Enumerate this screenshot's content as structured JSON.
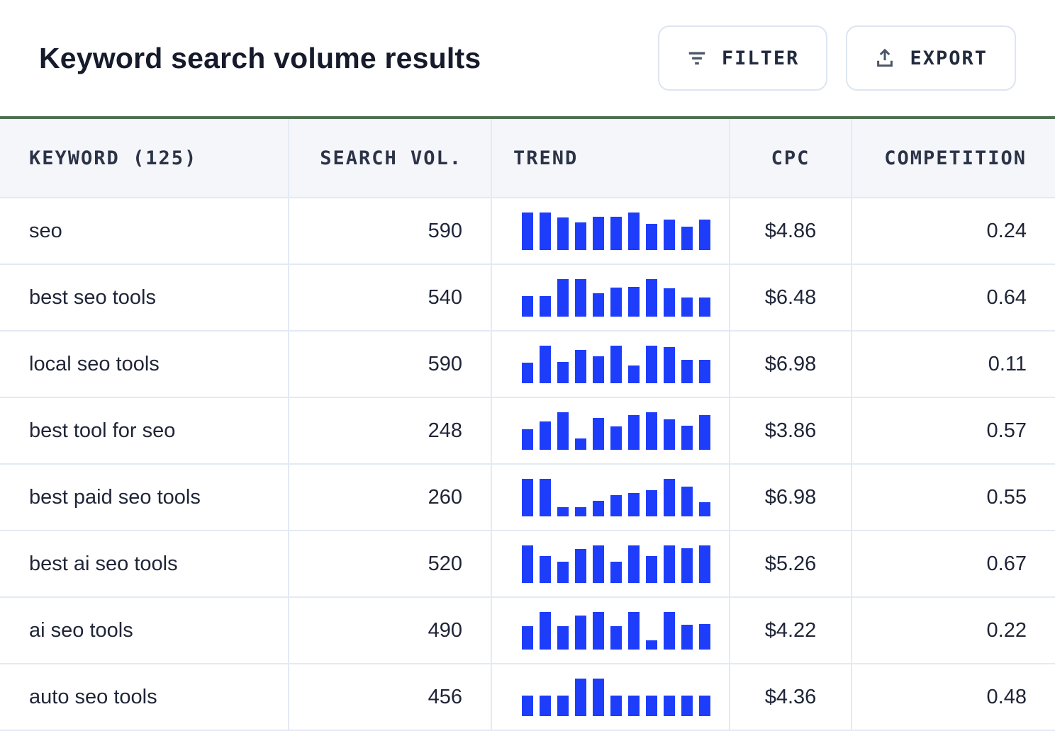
{
  "header": {
    "title": "Keyword search volume results",
    "filter_label": "FILTER",
    "export_label": "EXPORT"
  },
  "table": {
    "columns": [
      "KEYWORD (125)",
      "SEARCH VOL.",
      "TREND",
      "CPC",
      "COMPETITION"
    ],
    "rows": [
      {
        "keyword": "seo",
        "search_vol": "590",
        "cpc": "$4.86",
        "competition": "0.24",
        "trend": [
          0.99,
          1.0,
          0.85,
          0.72,
          0.88,
          0.88,
          0.99,
          0.68,
          0.8,
          0.62,
          0.81
        ]
      },
      {
        "keyword": "best seo tools",
        "search_vol": "540",
        "cpc": "$6.48",
        "competition": "0.64",
        "trend": [
          0.54,
          0.54,
          1.0,
          1.0,
          0.62,
          0.76,
          0.78,
          1.0,
          0.74,
          0.5,
          0.5
        ]
      },
      {
        "keyword": "local seo tools",
        "search_vol": "590",
        "cpc": "$6.98",
        "competition": "0.11",
        "trend": [
          0.54,
          1.0,
          0.55,
          0.88,
          0.7,
          1.0,
          0.47,
          1.0,
          0.95,
          0.62,
          0.62
        ]
      },
      {
        "keyword": "best tool for seo",
        "search_vol": "248",
        "cpc": "$3.86",
        "competition": "0.57",
        "trend": [
          0.53,
          0.74,
          1.0,
          0.3,
          0.84,
          0.61,
          0.92,
          0.99,
          0.8,
          0.63,
          0.92
        ]
      },
      {
        "keyword": "best paid seo tools",
        "search_vol": "260",
        "cpc": "$6.98",
        "competition": "0.55",
        "trend": [
          1.0,
          1.0,
          0.24,
          0.24,
          0.4,
          0.55,
          0.62,
          0.69,
          1.0,
          0.78,
          0.37
        ]
      },
      {
        "keyword": "best ai seo tools",
        "search_vol": "520",
        "cpc": "$5.26",
        "competition": "0.67",
        "trend": [
          1.0,
          0.7,
          0.55,
          0.9,
          1.0,
          0.55,
          1.0,
          0.7,
          1.0,
          0.92,
          1.0
        ]
      },
      {
        "keyword": "ai seo tools",
        "search_vol": "490",
        "cpc": "$4.22",
        "competition": "0.22",
        "trend": [
          0.62,
          1.0,
          0.62,
          0.89,
          1.0,
          0.62,
          1.0,
          0.24,
          1.0,
          0.65,
          0.67
        ]
      },
      {
        "keyword": "auto seo tools",
        "search_vol": "456",
        "cpc": "$4.36",
        "competition": "0.48",
        "trend": [
          0.53,
          0.53,
          0.53,
          1.0,
          1.0,
          0.53,
          0.53,
          0.53,
          0.53,
          0.53,
          0.53
        ]
      }
    ]
  },
  "colors": {
    "trend_bar": "#1e3dfb",
    "table_top_border": "#4d7152",
    "header_bg": "#f4f6fa",
    "grid_line": "#e3eaf4",
    "text_primary": "#161b2c"
  }
}
